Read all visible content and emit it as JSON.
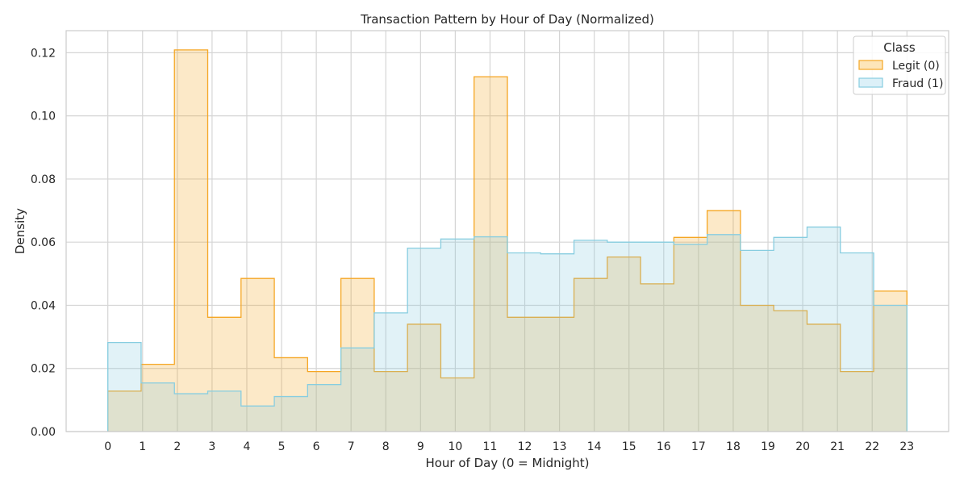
{
  "chart_data": {
    "type": "histogram-step",
    "title": "Transaction Pattern by Hour of Day (Normalized)",
    "xlabel": "Hour of Day (0 = Midnight)",
    "ylabel": "Density",
    "xlim": [
      -1.2,
      24.2
    ],
    "ylim": [
      0,
      0.127
    ],
    "xticks": [
      0,
      1,
      2,
      3,
      4,
      5,
      6,
      7,
      8,
      9,
      10,
      11,
      12,
      13,
      14,
      15,
      16,
      17,
      18,
      19,
      20,
      21,
      22,
      23
    ],
    "yticks": [
      0.0,
      0.02,
      0.04,
      0.06,
      0.08,
      0.1,
      0.12
    ],
    "ytick_labels": [
      "0.00",
      "0.02",
      "0.04",
      "0.06",
      "0.08",
      "0.10",
      "0.12"
    ],
    "bin_range": [
      0,
      23
    ],
    "bin_count": 24,
    "grid": true,
    "legend": {
      "title": "Class",
      "placement": "top-right"
    },
    "series": [
      {
        "name": "Legit (0)",
        "color": "#f5a623",
        "fill": "#fde5b9",
        "values": [
          0.0128,
          0.0213,
          0.1209,
          0.0362,
          0.0485,
          0.0234,
          0.019,
          0.0485,
          0.019,
          0.034,
          0.017,
          0.1124,
          0.0362,
          0.0362,
          0.0485,
          0.0553,
          0.0468,
          0.0615,
          0.07,
          0.04,
          0.0383,
          0.034,
          0.019,
          0.0445
        ]
      },
      {
        "name": "Fraud (1)",
        "color": "#87cde0",
        "fill": "#dcf0f8",
        "values": [
          0.0282,
          0.0154,
          0.012,
          0.0128,
          0.0081,
          0.0111,
          0.0149,
          0.0265,
          0.0376,
          0.0581,
          0.061,
          0.0617,
          0.0566,
          0.0563,
          0.0606,
          0.06,
          0.06,
          0.0593,
          0.0624,
          0.0574,
          0.0615,
          0.0648,
          0.0566,
          0.04
        ]
      }
    ]
  }
}
